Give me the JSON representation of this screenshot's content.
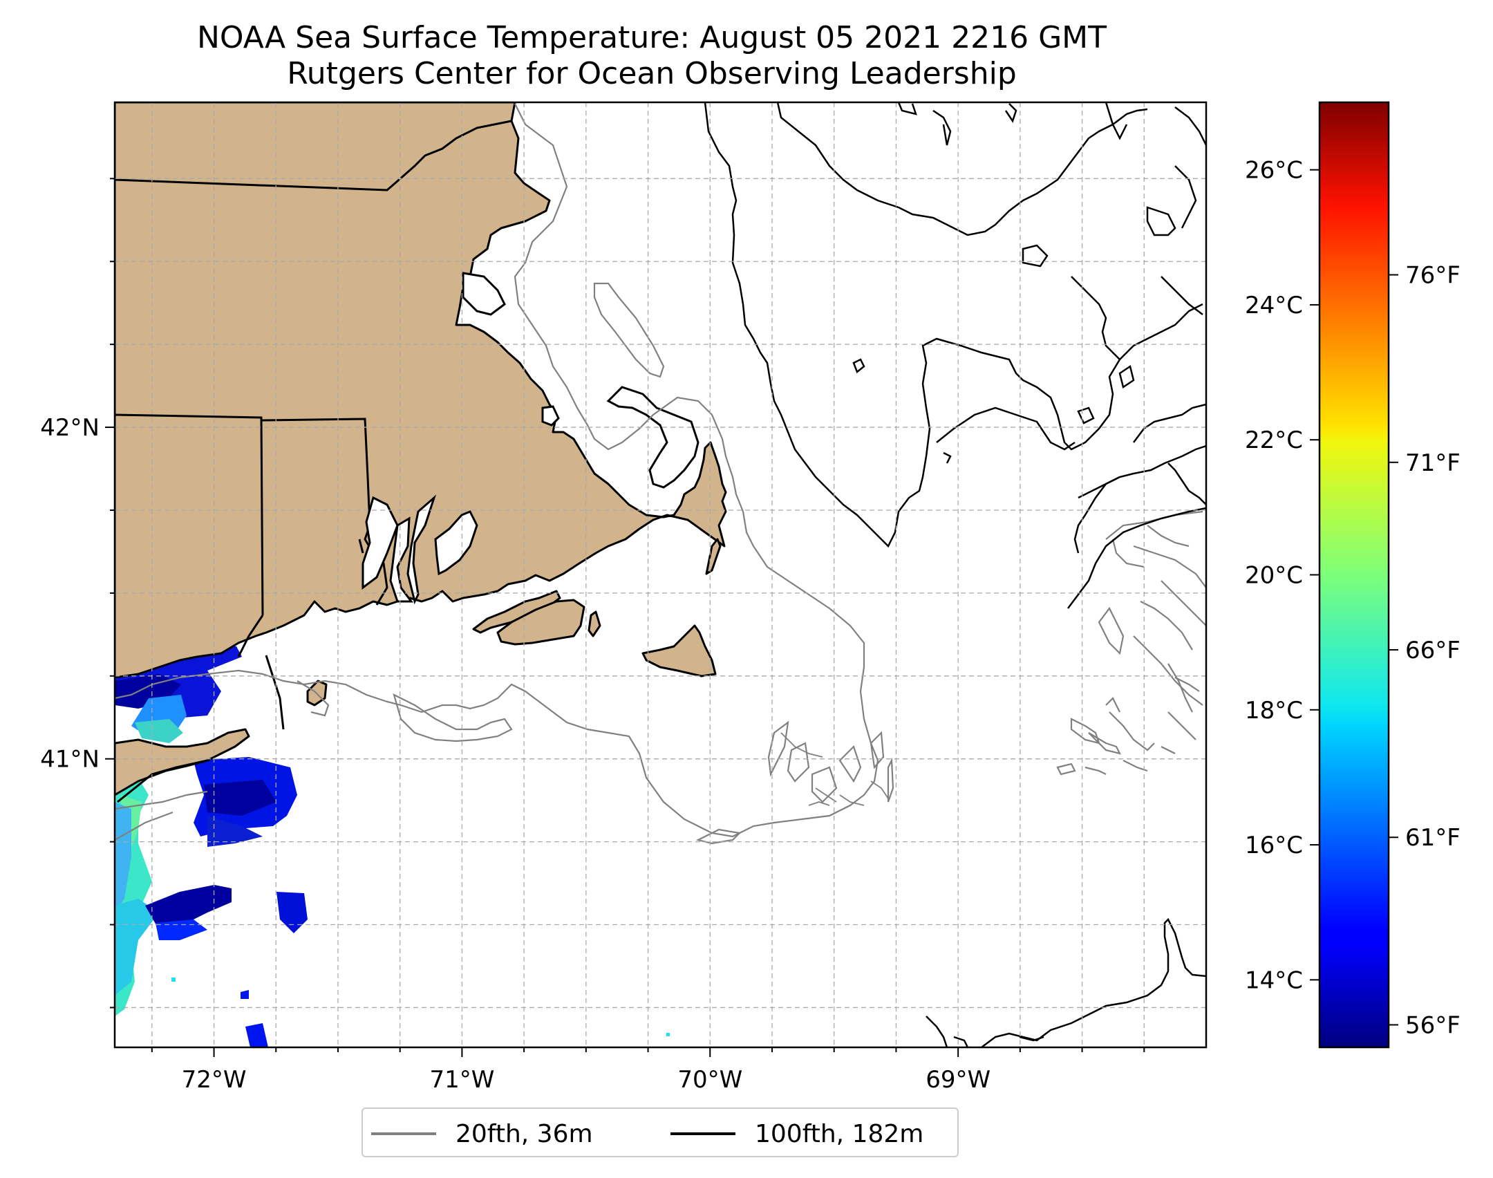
{
  "title": {
    "line1": "NOAA Sea Surface Temperature: August 05 2021 2216 GMT",
    "line2": "Rutgers Center for Ocean Observing Leadership"
  },
  "map": {
    "lon_range": [
      -72.4,
      -68.0
    ],
    "lat_range": [
      40.13,
      42.98
    ],
    "x_ticks": [
      {
        "lon": -72,
        "label": "72°W"
      },
      {
        "lon": -71,
        "label": "71°W"
      },
      {
        "lon": -70,
        "label": "70°W"
      },
      {
        "lon": -69,
        "label": "69°W"
      }
    ],
    "y_ticks": [
      {
        "lat": 42,
        "label": "42°N"
      },
      {
        "lat": 41,
        "label": "41°N"
      }
    ],
    "gridlines": "dashed",
    "land_color": "#d2b48c",
    "sst_color": "#00009f"
  },
  "colorbar": {
    "colormap": "jet",
    "range_c": [
      13.0,
      27.0
    ],
    "celsius_ticks": [
      {
        "value": 14,
        "label": "14°C"
      },
      {
        "value": 16,
        "label": "16°C"
      },
      {
        "value": 18,
        "label": "18°C"
      },
      {
        "value": 20,
        "label": "20°C"
      },
      {
        "value": 22,
        "label": "22°C"
      },
      {
        "value": 24,
        "label": "24°C"
      },
      {
        "value": 26,
        "label": "26°C"
      }
    ],
    "fahrenheit_ticks": [
      {
        "value": 56,
        "label": "56°F"
      },
      {
        "value": 61,
        "label": "61°F"
      },
      {
        "value": 66,
        "label": "66°F"
      },
      {
        "value": 71,
        "label": "71°F"
      },
      {
        "value": 76,
        "label": "76°F"
      }
    ]
  },
  "legend": {
    "items": [
      {
        "label": "20fth, 36m",
        "color": "#808080"
      },
      {
        "label": "100fth, 182m",
        "color": "#000000"
      }
    ]
  }
}
